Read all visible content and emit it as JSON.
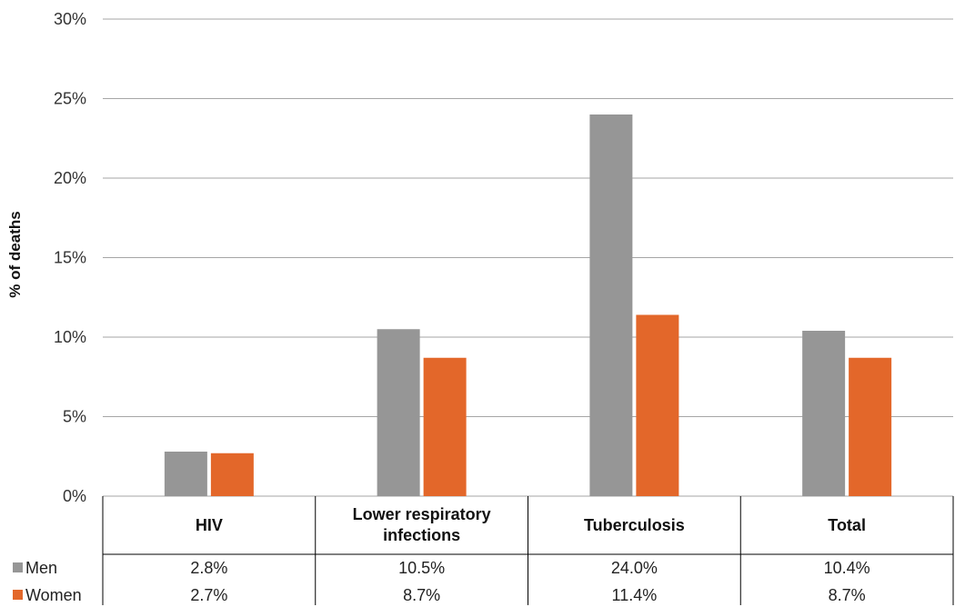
{
  "chart_data": {
    "type": "bar",
    "ylabel": "% of deaths",
    "xlabel": "",
    "ylim": [
      0,
      30
    ],
    "yticks": [
      "0%",
      "5%",
      "10%",
      "15%",
      "20%",
      "25%",
      "30%"
    ],
    "grid": true,
    "legend_position": "bottom-left (data table)",
    "categories": [
      "HIV",
      "Lower respiratory\ninfections",
      "Tuberculosis",
      "Total"
    ],
    "series": [
      {
        "name": "Men",
        "color": "#969696",
        "values": [
          2.8,
          10.5,
          24.0,
          10.4
        ],
        "labels": [
          "2.8%",
          "10.5%",
          "24.0%",
          "10.4%"
        ]
      },
      {
        "name": "Women",
        "color": "#e3672a",
        "values": [
          2.7,
          8.7,
          11.4,
          8.7
        ],
        "labels": [
          "2.7%",
          "8.7%",
          "11.4%",
          "8.7%"
        ]
      }
    ]
  }
}
